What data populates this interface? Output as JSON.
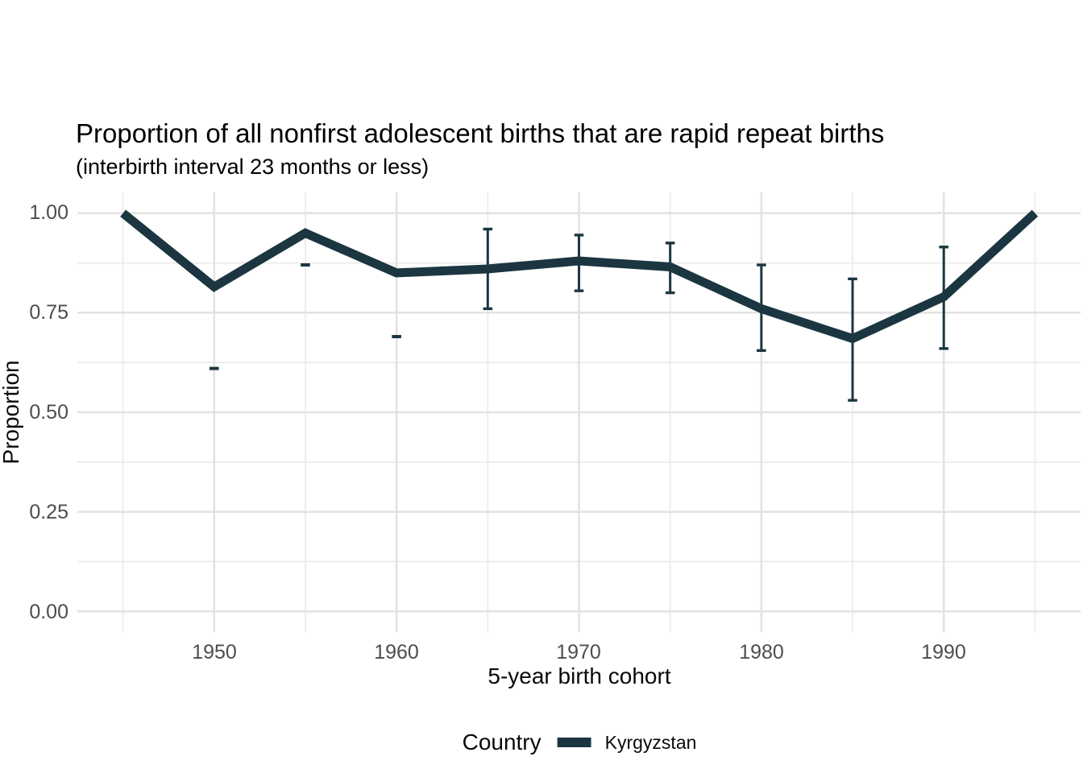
{
  "title": "Proportion of all nonfirst adolescent births that are rapid repeat births",
  "subtitle": "(interbirth interval 23 months or less)",
  "legend": {
    "title": "Country",
    "items": [
      {
        "label": "Kyrgyzstan",
        "color": "#1b3640"
      }
    ]
  },
  "colors": {
    "series": "#1b3640",
    "grid_major": "#e3e3e3",
    "grid_minor": "#ececec",
    "tick_label": "#4d4d4d",
    "text": "#000000",
    "background": "#ffffff"
  },
  "chart_data": {
    "type": "line",
    "title": "Proportion of all nonfirst adolescent births that are rapid repeat births",
    "subtitle": "(interbirth interval 23 months or less)",
    "xlabel": "5-year birth cohort",
    "ylabel": "Proportion",
    "legend_position": "bottom",
    "grid": true,
    "xlim": [
      1942.5,
      1997.5
    ],
    "ylim": [
      -0.052,
      1.052
    ],
    "x_tick_labels": [
      "1950",
      "1960",
      "1970",
      "1980",
      "1990"
    ],
    "y_tick_labels": [
      "0.00",
      "0.25",
      "0.50",
      "0.75",
      "1.00"
    ],
    "x_major_gridlines": [
      1950,
      1960,
      1970,
      1980,
      1990
    ],
    "x_minor_gridlines": [
      1945,
      1955,
      1965,
      1975,
      1985,
      1995
    ],
    "y_major_gridlines": [
      0,
      0.25,
      0.5,
      0.75,
      1.0
    ],
    "y_minor_gridlines": [
      0.125,
      0.375,
      0.625,
      0.875
    ],
    "x": [
      1945,
      1950,
      1955,
      1960,
      1965,
      1970,
      1975,
      1980,
      1985,
      1990,
      1995
    ],
    "series": [
      {
        "name": "Kyrgyzstan",
        "color": "#1b3640",
        "values": [
          1.0,
          0.815,
          0.95,
          0.85,
          0.86,
          0.88,
          0.865,
          0.76,
          0.685,
          0.79,
          1.0
        ]
      }
    ],
    "error_bars": [
      {
        "x": 1965,
        "low": 0.76,
        "high": 0.96
      },
      {
        "x": 1970,
        "low": 0.805,
        "high": 0.945
      },
      {
        "x": 1975,
        "low": 0.8,
        "high": 0.925
      },
      {
        "x": 1980,
        "low": 0.655,
        "high": 0.87
      },
      {
        "x": 1985,
        "low": 0.53,
        "high": 0.835
      },
      {
        "x": 1990,
        "low": 0.66,
        "high": 0.915
      }
    ],
    "cap_marks": [
      {
        "x": 1950,
        "y": 0.61
      },
      {
        "x": 1955,
        "y": 0.87
      },
      {
        "x": 1960,
        "y": 0.69
      }
    ]
  }
}
